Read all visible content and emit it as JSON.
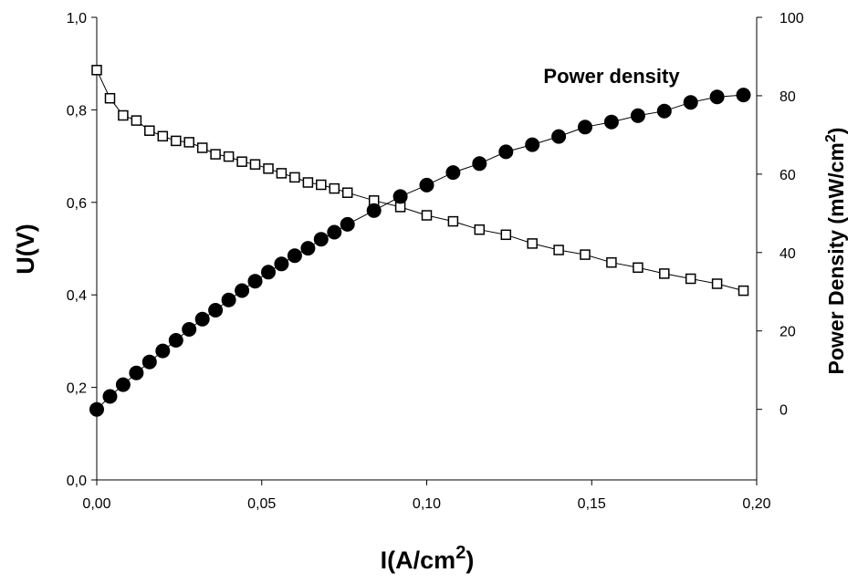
{
  "chart_data": {
    "type": "line",
    "title": "",
    "xlabel_main": "I(A/cm",
    "xlabel_sup": "2",
    "xlabel_close": ")",
    "ylabel": "U(V)",
    "ylabel_right_main": "Power Density (mW/cm",
    "ylabel_right_sup": "2",
    "ylabel_right_close": ")",
    "annotation": "Power density",
    "xlim": [
      0,
      0.2
    ],
    "ylim": [
      0,
      1.0
    ],
    "y2lim": [
      -18,
      100
    ],
    "x_ticks": [
      0,
      0.05,
      0.1,
      0.15,
      0.2
    ],
    "x_tick_labels": [
      "0,00",
      "0,05",
      "0,10",
      "0,15",
      "0,20"
    ],
    "y_ticks": [
      0,
      0.2,
      0.4,
      0.6,
      0.8,
      1.0
    ],
    "y_tick_labels": [
      "0,0",
      "0,2",
      "0,4",
      "0,6",
      "0,8",
      "1,0"
    ],
    "y2_ticks": [
      0,
      20,
      40,
      60,
      80,
      100
    ],
    "y2_tick_labels": [
      "0",
      "20",
      "40",
      "60",
      "80",
      "100"
    ],
    "grid": false,
    "legend": "none",
    "series": [
      {
        "axis": "left",
        "marker": "open-square",
        "color": "#000000",
        "x": [
          0,
          0.004,
          0.008,
          0.012,
          0.016,
          0.02,
          0.024,
          0.028,
          0.032,
          0.036,
          0.04,
          0.044,
          0.048,
          0.052,
          0.056,
          0.06,
          0.064,
          0.068,
          0.072,
          0.076,
          0.084,
          0.092,
          0.1,
          0.108,
          0.116,
          0.124,
          0.132,
          0.14,
          0.148,
          0.156,
          0.164,
          0.172,
          0.18,
          0.188,
          0.196
        ],
        "values": [
          0.886,
          0.825,
          0.788,
          0.777,
          0.755,
          0.743,
          0.733,
          0.73,
          0.718,
          0.704,
          0.699,
          0.688,
          0.682,
          0.673,
          0.663,
          0.654,
          0.643,
          0.638,
          0.63,
          0.621,
          0.604,
          0.59,
          0.572,
          0.559,
          0.541,
          0.53,
          0.511,
          0.497,
          0.487,
          0.47,
          0.459,
          0.446,
          0.435,
          0.424,
          0.409
        ]
      },
      {
        "axis": "right",
        "marker": "filled-circle",
        "color": "#000000",
        "x": [
          0,
          0.004,
          0.008,
          0.012,
          0.016,
          0.02,
          0.024,
          0.028,
          0.032,
          0.036,
          0.04,
          0.044,
          0.048,
          0.052,
          0.056,
          0.06,
          0.064,
          0.068,
          0.072,
          0.076,
          0.084,
          0.092,
          0.1,
          0.108,
          0.116,
          0.124,
          0.132,
          0.14,
          0.148,
          0.156,
          0.164,
          0.172,
          0.18,
          0.188,
          0.196
        ],
        "values": [
          0,
          3.3,
          6.3,
          9.3,
          12.1,
          14.9,
          17.6,
          20.4,
          23.0,
          25.3,
          27.9,
          30.3,
          32.7,
          35.0,
          37.1,
          39.2,
          41.1,
          43.4,
          45.2,
          47.2,
          50.7,
          54.3,
          57.2,
          60.4,
          62.7,
          65.7,
          67.5,
          69.6,
          72.0,
          73.3,
          74.9,
          76.1,
          78.3,
          79.7,
          80.2
        ]
      }
    ]
  }
}
